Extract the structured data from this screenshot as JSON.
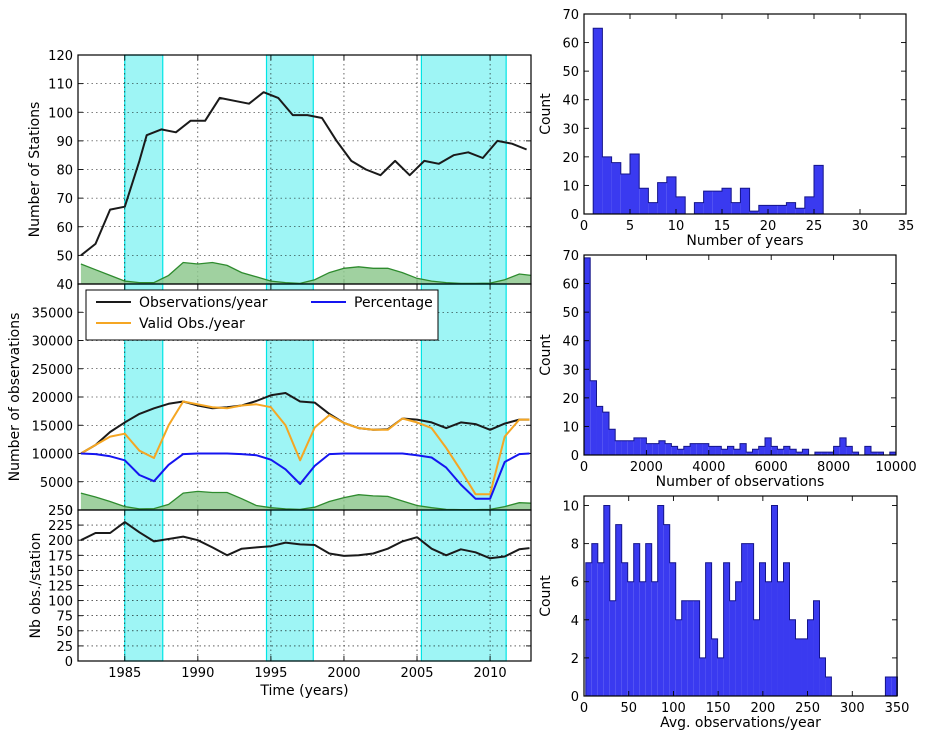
{
  "colors": {
    "shade": "#00e5e5",
    "black": "#1a1a1a",
    "orange": "#f5a623",
    "blue": "#1515f0",
    "green_fill": "#8fc98f",
    "green_line": "#2e8b2e",
    "hist_fill": "#3a3af0",
    "hist_edge": "#14148a"
  },
  "chart_data": [
    {
      "id": "stations",
      "type": "line",
      "xlabel": "",
      "ylabel": "Number of Stations",
      "xlim": [
        1981.8,
        2012.8
      ],
      "ylim": [
        40,
        120
      ],
      "yticks": [
        40,
        50,
        60,
        70,
        80,
        90,
        100,
        110,
        120
      ],
      "grid": true,
      "shaded_periods": [
        [
          1985.0,
          1987.6
        ],
        [
          1994.7,
          1997.9
        ],
        [
          2005.3,
          2011.1
        ]
      ],
      "series": [
        {
          "color": "black",
          "x": [
            1982,
            1983,
            1984,
            1985,
            1986,
            1986.5,
            1987.5,
            1988.5,
            1989.5,
            1990.5,
            1991.5,
            1992.5,
            1993.5,
            1994.5,
            1995.5,
            1996.5,
            1997.5,
            1998.5,
            1999.5,
            2000.5,
            2001.5,
            2002.5,
            2003.5,
            2004.5,
            2005.5,
            2006.5,
            2007.5,
            2008.5,
            2009.5,
            2010.5,
            2011.5,
            2012.5
          ],
          "y": [
            50,
            54,
            66,
            67,
            83,
            92,
            94,
            93,
            97,
            97,
            105,
            104,
            103,
            107,
            105,
            99,
            99,
            98,
            90,
            83,
            80,
            78,
            83,
            78,
            83,
            82,
            85,
            86,
            84,
            90,
            89,
            87
          ]
        },
        {
          "color": "green",
          "filled": true,
          "x": [
            1982,
            1983,
            1984,
            1985,
            1986,
            1987,
            1988,
            1989,
            1990,
            1991,
            1992,
            1993,
            1994,
            1995,
            1996,
            1997,
            1998,
            1999,
            2000,
            2001,
            2002,
            2003,
            2004,
            2005,
            2006,
            2007,
            2008,
            2009,
            2010,
            2011,
            2012,
            2012.8
          ],
          "y": [
            47,
            45,
            43,
            41,
            40.5,
            40.5,
            43,
            47.5,
            47,
            47.5,
            46.5,
            44,
            42.5,
            41,
            40.5,
            40.2,
            41.5,
            44,
            45.5,
            46,
            45.5,
            45.5,
            44,
            42,
            41,
            40.5,
            40.2,
            40.2,
            40.3,
            41.5,
            43.5,
            43
          ]
        }
      ]
    },
    {
      "id": "observations",
      "type": "line",
      "xlabel": "",
      "ylabel": "Number of observations",
      "xlim": [
        1981.8,
        2012.8
      ],
      "ylim": [
        0,
        40000
      ],
      "yticks": [
        0,
        5000,
        10000,
        15000,
        20000,
        25000,
        30000,
        35000
      ],
      "grid": true,
      "shaded_periods": [
        [
          1985.0,
          1987.6
        ],
        [
          1994.7,
          1997.9
        ],
        [
          2005.3,
          2011.1
        ]
      ],
      "legend": {
        "position": "top",
        "entries": [
          {
            "label": "Observations/year",
            "color": "black"
          },
          {
            "label": "Valid Obs./year",
            "color": "orange"
          },
          {
            "label": "Percentage",
            "color": "blue"
          }
        ]
      },
      "series": [
        {
          "name": "Observations/year",
          "color": "black",
          "x": [
            1982,
            1983,
            1984,
            1985,
            1986,
            1987,
            1988,
            1989,
            1990,
            1991,
            1992,
            1993,
            1994,
            1995,
            1996,
            1997,
            1998,
            1999,
            2000,
            2001,
            2002,
            2003,
            2004,
            2005,
            2006,
            2007,
            2008,
            2009,
            2010,
            2011,
            2012,
            2012.7
          ],
          "y": [
            10000,
            11500,
            13800,
            15500,
            17000,
            18000,
            18800,
            19200,
            18500,
            18000,
            18200,
            18500,
            19300,
            20300,
            20700,
            19200,
            19000,
            17000,
            15400,
            14500,
            14200,
            14300,
            16200,
            16000,
            15500,
            14500,
            15500,
            15200,
            14200,
            15300,
            16000,
            16000
          ]
        },
        {
          "name": "Valid Obs./year",
          "color": "orange",
          "x": [
            1982,
            1983,
            1984,
            1985,
            1986,
            1987,
            1988,
            1989,
            1990,
            1991,
            1992,
            1993,
            1994,
            1995,
            1996,
            1997,
            1998,
            1999,
            2000,
            2001,
            2002,
            2003,
            2004,
            2005,
            2006,
            2007,
            2008,
            2009,
            2010,
            2011,
            2012,
            2012.7
          ],
          "y": [
            10000,
            11500,
            13000,
            13500,
            10500,
            9200,
            15000,
            19200,
            18700,
            18200,
            18000,
            18500,
            18700,
            18200,
            15000,
            8800,
            14600,
            16800,
            15400,
            14500,
            14200,
            14200,
            16200,
            15500,
            14500,
            11000,
            7000,
            2800,
            2800,
            13000,
            16000,
            16000
          ]
        },
        {
          "name": "Percentage",
          "color": "blue",
          "x": [
            1982,
            1983,
            1984,
            1985,
            1986,
            1987,
            1988,
            1989,
            1990,
            1991,
            1992,
            1993,
            1994,
            1995,
            1996,
            1997,
            1998,
            1999,
            2000,
            2001,
            2002,
            2003,
            2004,
            2005,
            2006,
            2007,
            2008,
            2009,
            2010,
            2011,
            2012,
            2012.7
          ],
          "y": [
            10000,
            9900,
            9500,
            8800,
            6200,
            5100,
            8000,
            9900,
            10000,
            10000,
            10000,
            9900,
            9700,
            8900,
            7200,
            4600,
            7800,
            9900,
            10000,
            10000,
            10000,
            10000,
            10000,
            9700,
            9300,
            7500,
            4500,
            2000,
            2000,
            8500,
            9900,
            10000
          ]
        },
        {
          "color": "green",
          "filled": true,
          "x": [
            1982,
            1983,
            1984,
            1985,
            1986,
            1987,
            1988,
            1989,
            1990,
            1991,
            1992,
            1993,
            1994,
            1995,
            1996,
            1997,
            1998,
            1999,
            2000,
            2001,
            2002,
            2003,
            2004,
            2005,
            2006,
            2007,
            2008,
            2009,
            2010,
            2011,
            2012,
            2012.8
          ],
          "y": [
            3000,
            2300,
            1500,
            600,
            200,
            250,
            1000,
            3000,
            3300,
            3100,
            3100,
            2000,
            800,
            400,
            200,
            100,
            500,
            1500,
            2200,
            2700,
            2500,
            2400,
            1600,
            800,
            400,
            100,
            50,
            50,
            100,
            600,
            1300,
            1200
          ]
        }
      ]
    },
    {
      "id": "obs_per_station",
      "type": "line",
      "xlabel": "Time (years)",
      "ylabel": "Nb obs./station",
      "xlim": [
        1981.8,
        2012.8
      ],
      "ylim": [
        0,
        250
      ],
      "yticks": [
        0,
        25,
        50,
        75,
        100,
        125,
        150,
        175,
        200,
        225,
        250
      ],
      "xticks": [
        1985,
        1990,
        1995,
        2000,
        2005,
        2010
      ],
      "grid": true,
      "shaded_periods": [
        [
          1985.0,
          1987.6
        ],
        [
          1994.7,
          1997.9
        ],
        [
          2005.3,
          2011.1
        ]
      ],
      "series": [
        {
          "color": "black",
          "x": [
            1982,
            1983,
            1984,
            1985,
            1986,
            1987,
            1988,
            1989,
            1990,
            1991,
            1992,
            1993,
            1994,
            1995,
            1996,
            1997,
            1998,
            1999,
            2000,
            2001,
            2002,
            2003,
            2004,
            2005,
            2006,
            2007,
            2008,
            2009,
            2010,
            2011,
            2012,
            2012.7
          ],
          "y": [
            200,
            212,
            212,
            230,
            213,
            198,
            202,
            206,
            200,
            188,
            175,
            186,
            188,
            190,
            196,
            193,
            192,
            178,
            174,
            175,
            178,
            186,
            198,
            205,
            186,
            175,
            185,
            180,
            170,
            173,
            185,
            187
          ]
        }
      ]
    },
    {
      "id": "hist_years",
      "type": "bar",
      "xlabel": "Number of years",
      "ylabel": "Count",
      "xlim": [
        0,
        35
      ],
      "ylim": [
        0,
        70
      ],
      "xticks": [
        0,
        5,
        10,
        15,
        20,
        25,
        30,
        35
      ],
      "yticks": [
        0,
        10,
        20,
        30,
        40,
        50,
        60,
        70
      ],
      "bin_start": 1,
      "bin_width": 1,
      "values": [
        65,
        20,
        18,
        14,
        21,
        9,
        4,
        11,
        13,
        6,
        0,
        4,
        8,
        8,
        9,
        4,
        9,
        1,
        3,
        3,
        3,
        4,
        2,
        6,
        17
      ]
    },
    {
      "id": "hist_observations",
      "type": "bar",
      "xlabel": "Number of observations",
      "ylabel": "Count",
      "xlim": [
        0,
        10000
      ],
      "ylim": [
        0,
        70
      ],
      "xticks": [
        0,
        2000,
        4000,
        6000,
        8000,
        10000
      ],
      "yticks": [
        0,
        10,
        20,
        30,
        40,
        50,
        60,
        70
      ],
      "bin_start": 0,
      "bin_width": 200,
      "values": [
        69,
        26,
        17,
        15,
        9,
        5,
        5,
        5,
        6,
        6,
        4,
        4,
        5,
        4,
        3,
        2,
        3,
        4,
        4,
        4,
        3,
        3,
        2,
        3,
        2,
        4,
        1,
        2,
        3,
        6,
        3,
        2,
        3,
        2,
        1,
        2,
        0,
        1,
        1,
        1,
        3,
        6,
        3,
        1,
        0,
        3,
        1,
        1,
        0,
        1
      ]
    },
    {
      "id": "hist_avg",
      "type": "bar",
      "xlabel": "Avg. observations/year",
      "ylabel": "Count",
      "xlim": [
        0,
        350
      ],
      "ylim": [
        0,
        10.5
      ],
      "xticks": [
        0,
        50,
        100,
        150,
        200,
        250,
        300,
        350
      ],
      "yticks": [
        0,
        2,
        4,
        6,
        8,
        10
      ],
      "bin_start": 2,
      "bin_width": 6.7,
      "values": [
        7,
        8,
        7,
        10,
        5,
        9,
        7,
        6,
        8,
        6,
        8,
        6,
        10,
        9,
        7,
        4,
        5,
        5,
        5,
        2,
        7,
        3,
        2,
        7,
        5,
        6,
        8,
        8,
        4,
        7,
        6,
        10,
        6,
        7,
        4,
        3,
        3,
        4,
        5,
        2,
        1,
        0,
        0,
        0,
        0,
        0,
        0,
        0,
        0,
        0,
        1,
        1
      ]
    }
  ]
}
